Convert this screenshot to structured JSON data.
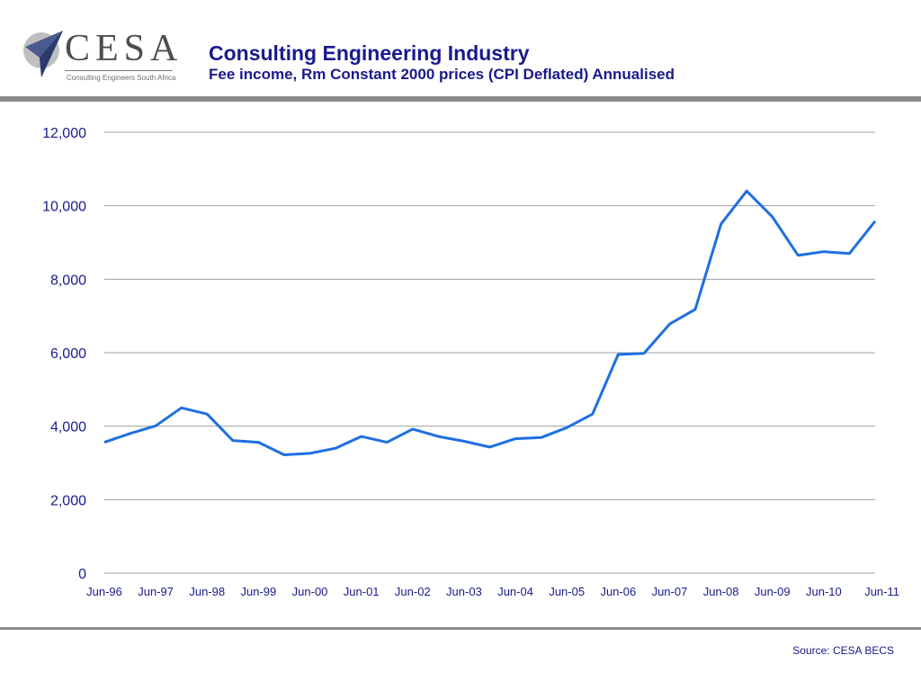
{
  "header": {
    "logo_text": "CESA",
    "logo_subtitle": "Consulting Engineers South Africa",
    "title": "Consulting Engineering Industry",
    "subtitle": "Fee income, Rm Constant 2000 prices (CPI Deflated) Annualised"
  },
  "footer": {
    "source": "Source: CESA BECS"
  },
  "colors": {
    "line": "#1f6fe0",
    "title": "#1a1a8c",
    "grid": "#a0a0a0",
    "bars": "#8c8c8c"
  },
  "chart_data": {
    "type": "line",
    "title": "",
    "xlabel": "",
    "ylabel": "",
    "ylim": [
      0,
      12000
    ],
    "yticks": [
      "0",
      "2,000",
      "4,000",
      "6,000",
      "8,000",
      "10,000",
      "12,000"
    ],
    "ytick_values": [
      0,
      2000,
      4000,
      6000,
      8000,
      10000,
      12000
    ],
    "xtick_labels": [
      "Jun-96",
      "Jun-97",
      "Jun-98",
      "Jun-99",
      "Jun-00",
      "Jun-01",
      "Jun-02",
      "Jun-03",
      "Jun-04",
      "Jun-05",
      "Jun-06",
      "Jun-07",
      "Jun-08",
      "Jun-09",
      "Jun-10",
      "Jun-11"
    ],
    "grid": true,
    "legend": "none",
    "series": [
      {
        "x": [
          "Jun-96",
          "Dec-96",
          "Jun-97",
          "Dec-97",
          "Jun-98",
          "Dec-98",
          "Jun-99",
          "Dec-99",
          "Jun-00",
          "Dec-00",
          "Jun-01",
          "Dec-01",
          "Jun-02",
          "Dec-02",
          "Jun-03",
          "Dec-03",
          "Jun-04",
          "Dec-04",
          "Jun-05",
          "Dec-05",
          "Jun-06",
          "Dec-06",
          "Jun-07",
          "Dec-07",
          "Jun-08",
          "Dec-08",
          "Jun-09",
          "Dec-09",
          "Jun-10",
          "Dec-10",
          "Jun-11"
        ],
        "values": [
          3560,
          3800,
          4010,
          4500,
          4330,
          3610,
          3560,
          3220,
          3260,
          3400,
          3720,
          3560,
          3920,
          3720,
          3590,
          3430,
          3660,
          3690,
          3960,
          4330,
          5950,
          5980,
          6780,
          7180,
          9500,
          10400,
          9700,
          8650,
          8750,
          8700,
          9580
        ]
      }
    ]
  }
}
